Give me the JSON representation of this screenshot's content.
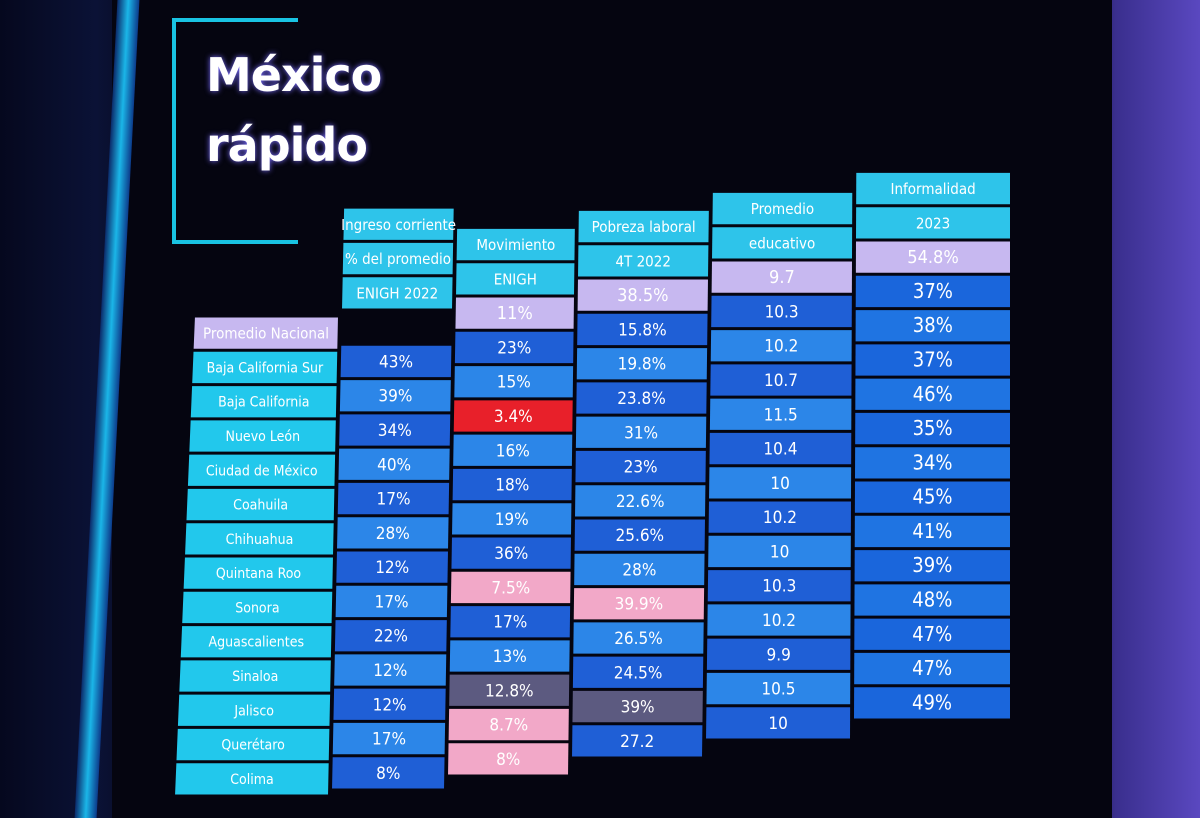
{
  "logo": {
    "line1": "México",
    "line2": "rápido"
  },
  "headers": [
    {
      "lines": [
        "Ingreso corriente",
        "% del promedio",
        "ENIGH 2022"
      ]
    },
    {
      "lines": [
        "Movimiento",
        "ENIGH"
      ]
    },
    {
      "lines": [
        "Pobreza laboral",
        "4T 2022"
      ]
    },
    {
      "lines": [
        "Promedio",
        "educativo"
      ]
    },
    {
      "lines": [
        "Informalidad",
        "2023"
      ]
    }
  ],
  "national": {
    "label": "Promedio Nacional",
    "values": [
      "",
      "11%",
      "38.5%",
      "9.7",
      "54.8%"
    ]
  },
  "rows": [
    {
      "state": "Baja California Sur",
      "values": [
        "43%",
        "23%",
        "15.8%",
        "10.3",
        "37%"
      ]
    },
    {
      "state": "Baja California",
      "values": [
        "39%",
        "15%",
        "19.8%",
        "10.2",
        "38%"
      ]
    },
    {
      "state": "Nuevo León",
      "values": [
        "34%",
        "3.4%",
        "23.8%",
        "10.7",
        "37%"
      ]
    },
    {
      "state": "Ciudad de México",
      "values": [
        "40%",
        "16%",
        "31%",
        "11.5",
        "46%"
      ]
    },
    {
      "state": "Coahuila",
      "values": [
        "17%",
        "18%",
        "23%",
        "10.4",
        "35%"
      ]
    },
    {
      "state": "Chihuahua",
      "values": [
        "28%",
        "19%",
        "22.6%",
        "10",
        "34%"
      ]
    },
    {
      "state": "Quintana Roo",
      "values": [
        "12%",
        "36%",
        "25.6%",
        "10.2",
        "45%"
      ]
    },
    {
      "state": "Sonora",
      "values": [
        "17%",
        "7.5%",
        "28%",
        "10",
        "41%"
      ]
    },
    {
      "state": "Aguascalientes",
      "values": [
        "22%",
        "17%",
        "39.9%",
        "10.3",
        "39%"
      ]
    },
    {
      "state": "Sinaloa",
      "values": [
        "12%",
        "13%",
        "26.5%",
        "10.2",
        "48%"
      ]
    },
    {
      "state": "Jalisco",
      "values": [
        "12%",
        "12.8%",
        "24.5%",
        "9.9",
        "47%"
      ]
    },
    {
      "state": "Querétaro",
      "values": [
        "17%",
        "8.7%",
        "39%",
        "10.5",
        "47%"
      ]
    },
    {
      "state": "Colima",
      "values": [
        "8%",
        "8%",
        "27.2",
        "10",
        "49%"
      ]
    }
  ],
  "highlights": [
    {
      "row": 2,
      "col": 1,
      "color": "#e8202a"
    },
    {
      "row": 7,
      "col": 1,
      "color": "#f2a8c8"
    },
    {
      "row": 8,
      "col": 2,
      "color": "#f2a8c8"
    },
    {
      "row": 10,
      "col": 1,
      "color": "#5c5a80"
    },
    {
      "row": 11,
      "col": 1,
      "color": "#f2a8c8"
    },
    {
      "row": 11,
      "col": 2,
      "color": "#5c5a80"
    },
    {
      "row": 12,
      "col": 1,
      "color": "#f2a8c8"
    }
  ],
  "colors": {
    "header_cell": "#2ec4ea",
    "national_cell": "#c7b8f0",
    "state_label_cell": "#22c8ec",
    "value_cell_dark": "#1f5fd6",
    "value_cell_light": "#2c86e8"
  }
}
